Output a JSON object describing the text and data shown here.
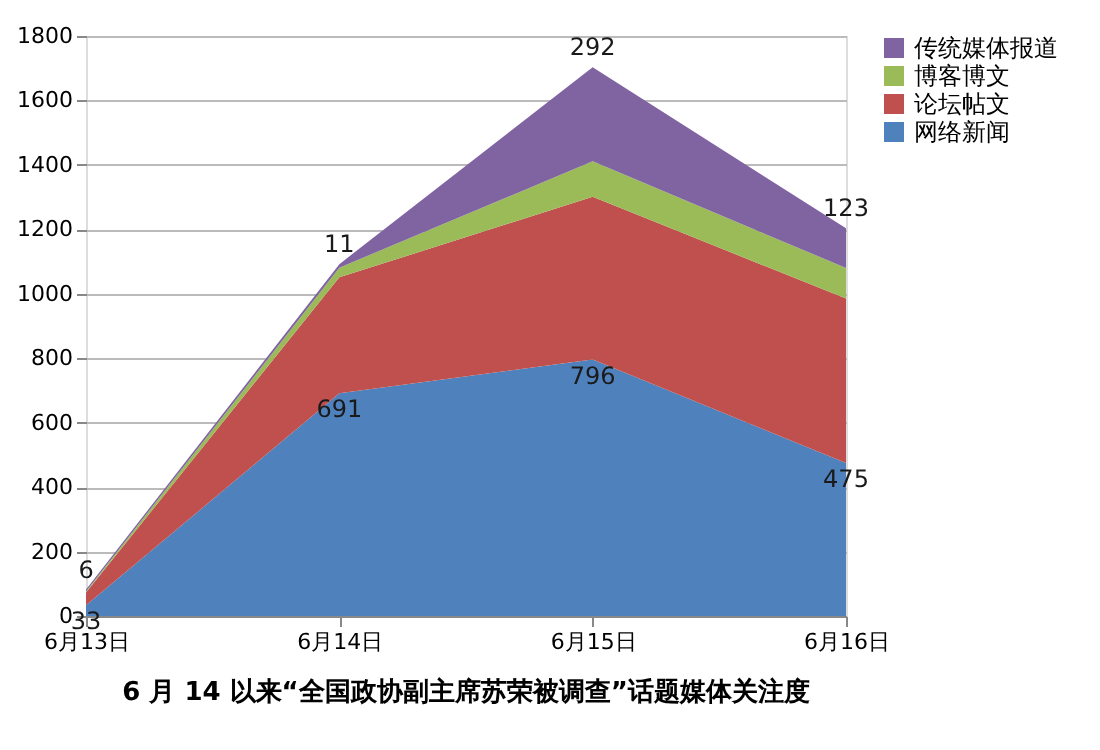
{
  "chart_data": {
    "type": "area",
    "stacked": true,
    "title": "6 月 14 以来“全国政协副主席苏荣被调查”话题媒体关注度",
    "categories": [
      "6月13日",
      "6月14日",
      "6月15日",
      "6月16日"
    ],
    "series": [
      {
        "name": "网络新闻",
        "color": "#4f81bd",
        "values": [
          33,
          691,
          796,
          475
        ],
        "value_labels": [
          "33",
          "691",
          "796",
          "475"
        ]
      },
      {
        "name": "论坛帖文",
        "color": "#c0504d",
        "values": [
          40,
          360,
          505,
          510
        ]
      },
      {
        "name": "博客博文",
        "color": "#9bbb59",
        "values": [
          3,
          30,
          110,
          95
        ]
      },
      {
        "name": "传统媒体报道",
        "color": "#8064a2",
        "values": [
          6,
          11,
          292,
          123
        ],
        "value_labels": [
          "6",
          "11",
          "292",
          "123"
        ]
      }
    ],
    "ylim": [
      0,
      1800
    ],
    "yticks": [
      0,
      200,
      400,
      600,
      800,
      1000,
      1200,
      1400,
      1600,
      1800
    ],
    "grid": "y",
    "legend": "right"
  }
}
